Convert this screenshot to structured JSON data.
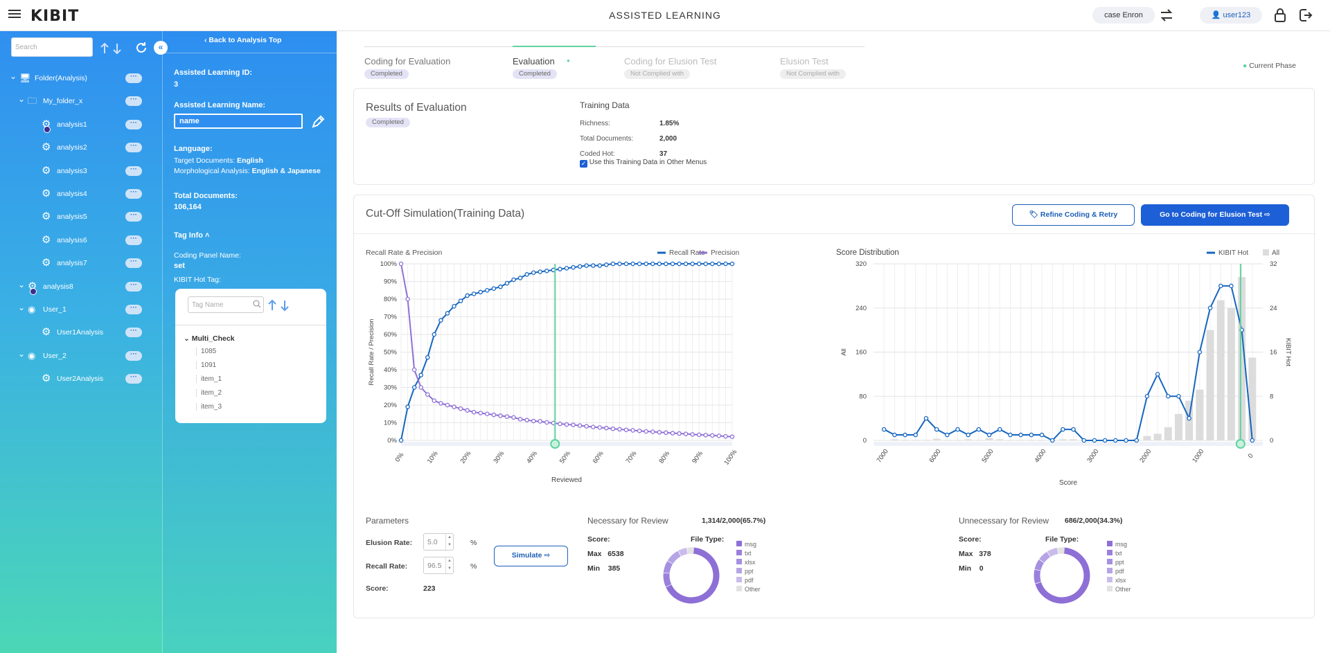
{
  "app": {
    "title": "ASSISTED LEARNING",
    "logo": "KIBIT",
    "case": "case Enron",
    "user": "user123"
  },
  "sidebar": {
    "search_placeholder": "Search",
    "tree": [
      {
        "label": "Folder(Analysis)",
        "icon": "monitor-icon",
        "level": 0
      },
      {
        "label": "My_folder_x",
        "icon": "folder-icon",
        "level": 1
      },
      {
        "label": "analysis1",
        "icon": "gear-icon",
        "level": 2,
        "flag": true
      },
      {
        "label": "analysis2",
        "icon": "gear-icon",
        "level": 2
      },
      {
        "label": "analysis3",
        "icon": "gear-icon",
        "level": 2
      },
      {
        "label": "analysis4",
        "icon": "gear-icon",
        "level": 2
      },
      {
        "label": "analysis5",
        "icon": "gear-icon",
        "level": 2
      },
      {
        "label": "analysis6",
        "icon": "gear-icon",
        "level": 2
      },
      {
        "label": "analysis7",
        "icon": "gear-icon",
        "level": 2
      },
      {
        "label": "analysis8",
        "icon": "gear-icon",
        "level": 1,
        "flag": true
      },
      {
        "label": "User_1",
        "icon": "user-icon",
        "level": 1
      },
      {
        "label": "User1Analysis",
        "icon": "gear-icon",
        "level": 2
      },
      {
        "label": "User_2",
        "icon": "user-icon",
        "level": 1
      },
      {
        "label": "User2Analysis",
        "icon": "gear-icon",
        "level": 2
      }
    ],
    "more": "···"
  },
  "panel": {
    "back": "Back to Analysis Top",
    "id_label": "Assisted Learning ID:",
    "id_value": "3",
    "name_label": "Assisted Learning Name:",
    "name_value": "name",
    "lang_label": "Language:",
    "target_label": "Target Documents:",
    "target_value": "English",
    "morph_label": "Morphological Analysis:",
    "morph_value": "English & Japanese",
    "total_label": "Total Documents:",
    "total_value": "106,164",
    "taginfo": "Tag Info",
    "coding_label": "Coding Panel Name:",
    "coding_value": "set",
    "hot_label": "KIBIT Hot Tag:",
    "tag_placeholder": "Tag Name",
    "tag_group": "Multi_Check",
    "tags": [
      "1085",
      "1091",
      "item_1",
      "item_2",
      "item_3"
    ]
  },
  "phases": [
    {
      "label": "Coding for Evaluation",
      "status": "Completed"
    },
    {
      "label": "Evaluation",
      "status": "Completed"
    },
    {
      "label": "Coding for Elusion Test",
      "status": "Not Complied with"
    },
    {
      "label": "Elusion Test",
      "status": "Not Complied with"
    }
  ],
  "current_phase": "Current Phase",
  "results": {
    "title": "Results of Evaluation",
    "status": "Completed",
    "training_title": "Training Data",
    "rows": [
      {
        "k": "Richness:",
        "v": "1.85%"
      },
      {
        "k": "Total Documents:",
        "v": "2,000"
      },
      {
        "k": "Coded Hot:",
        "v": "37"
      }
    ],
    "checkbox": "Use this Training Data in Other Menus"
  },
  "cutoff": {
    "title": "Cut-Off Simulation(Training Data)",
    "refine": "Refine Coding & Retry",
    "goto": "Go to Coding for Elusion Test",
    "simulate": "Simulate"
  },
  "params": {
    "title": "Parameters",
    "elusion_label": "Elusion Rate:",
    "elusion_value": "5.0",
    "recall_label": "Recall Rate:",
    "recall_value": "96.5",
    "score_label": "Score:",
    "score_value": "223",
    "unit": "%"
  },
  "necessary": {
    "title": "Necessary for Review",
    "count": "1,314/2,000(65.7%)",
    "score": "Score:",
    "filetype": "File Type:",
    "max_label": "Max",
    "max": "6538",
    "min_label": "Min",
    "min": "385",
    "legend": [
      "msg",
      "txt",
      "xlsx",
      "ppt",
      "pdf",
      "Other"
    ]
  },
  "unnecessary": {
    "title": "Unnecessary for Review",
    "count": "686/2,000(34.3%)",
    "score": "Score:",
    "filetype": "File Type:",
    "max_label": "Max",
    "max": "378",
    "min_label": "Min",
    "min": "0",
    "legend": [
      "msg",
      "txt",
      "ppt",
      "pdf",
      "xlsx",
      "Other"
    ]
  },
  "colors": {
    "blue": "#1565c0",
    "purple": "#8e6fd6",
    "green": "#5fd3a0",
    "gray": "#dcdcdc"
  },
  "chart_data": [
    {
      "type": "line",
      "title": "Recall Rate & Precision",
      "xlabel": "Reviewed",
      "ylabel": "Recall Rate / Precision",
      "legend_position": "top-right",
      "grid": true,
      "xlim": [
        0,
        100
      ],
      "ylim": [
        0,
        100
      ],
      "xticks": [
        "0%",
        "10%",
        "20%",
        "30%",
        "40%",
        "50%",
        "60%",
        "70%",
        "80%",
        "90%",
        "100%"
      ],
      "yticks": [
        "0%",
        "10%",
        "20%",
        "30%",
        "40%",
        "50%",
        "60%",
        "70%",
        "80%",
        "90%",
        "100%"
      ],
      "cutoff_x": 46.5,
      "x": [
        0,
        2,
        4,
        6,
        8,
        10,
        12,
        14,
        16,
        18,
        20,
        22,
        24,
        26,
        28,
        30,
        32,
        34,
        36,
        38,
        40,
        42,
        44,
        46,
        48,
        50,
        52,
        54,
        56,
        58,
        60,
        62,
        64,
        66,
        68,
        70,
        72,
        74,
        76,
        78,
        80,
        82,
        84,
        86,
        88,
        90,
        92,
        94,
        96,
        98,
        100
      ],
      "series": [
        {
          "name": "Recall Rate",
          "color": "#1565c0",
          "values": [
            0,
            19,
            30,
            37,
            47,
            60,
            68,
            72,
            76,
            79,
            82,
            83,
            84,
            85,
            86,
            87,
            89,
            91,
            92,
            94,
            95,
            95.5,
            96,
            96.5,
            97,
            97.5,
            98,
            98.5,
            99,
            99,
            99,
            99.5,
            100,
            100,
            100,
            100,
            100,
            100,
            100,
            100,
            100,
            100,
            100,
            100,
            100,
            100,
            100,
            100,
            100,
            100,
            100
          ]
        },
        {
          "name": "Precision",
          "color": "#8e6fd6",
          "values": [
            100,
            80,
            40,
            30,
            26,
            22.5,
            21,
            20,
            19,
            18,
            17,
            16,
            15.5,
            15,
            14.5,
            14,
            13.5,
            13,
            12,
            11.5,
            11,
            10.8,
            10.2,
            9.8,
            9.4,
            9,
            8.8,
            8.4,
            8.0,
            7.6,
            7.3,
            7.0,
            6.6,
            6.3,
            6.0,
            5.7,
            5.4,
            5.1,
            4.9,
            4.6,
            4.4,
            4.1,
            3.9,
            3.7,
            3.4,
            3.2,
            3.0,
            2.8,
            2.6,
            2.3,
            2.1
          ]
        }
      ]
    },
    {
      "type": "bar+line",
      "title": "Score Distribution",
      "xlabel": "Score",
      "ylabel": "All",
      "y2label": "KIBIT Hot",
      "legend_position": "top-right",
      "grid": true,
      "xlim": [
        7200,
        -200
      ],
      "xticks": [
        "7000",
        "6000",
        "5000",
        "4000",
        "3000",
        "2000",
        "1000",
        "0"
      ],
      "xtick_values": [
        7000,
        6000,
        5000,
        4000,
        3000,
        2000,
        1000,
        0
      ],
      "ylim": [
        0,
        320
      ],
      "yticks": [
        "0",
        "80",
        "160",
        "240",
        "320"
      ],
      "y2lim": [
        0,
        32
      ],
      "y2ticks": [
        "0",
        "8",
        "16",
        "24",
        "32"
      ],
      "cutoff_x": 223,
      "series": [
        {
          "name": "KIBIT Hot",
          "axis": "y2",
          "color": "#1565c0",
          "x": [
            7000,
            6800,
            6600,
            6400,
            6200,
            6000,
            5800,
            5600,
            5400,
            5200,
            5000,
            4800,
            4600,
            4400,
            4200,
            4000,
            3800,
            3600,
            3400,
            3200,
            3000,
            2800,
            2600,
            2400,
            2200,
            2000,
            1800,
            1600,
            1400,
            1200,
            1000,
            800,
            600,
            400,
            200,
            0
          ],
          "values": [
            2,
            1,
            1,
            1,
            4,
            2,
            1,
            2,
            1,
            2,
            1,
            2,
            1,
            1,
            1,
            1,
            0,
            2,
            2,
            0,
            0,
            0,
            0,
            0,
            0,
            8,
            12,
            8,
            8,
            4,
            16,
            24,
            28,
            28,
            20,
            0
          ]
        },
        {
          "name": "All",
          "axis": "y1",
          "color": "#dcdcdc",
          "x": [
            6800,
            6600,
            6400,
            6200,
            6000,
            5800,
            5600,
            5400,
            5200,
            5000,
            4800,
            4600,
            4400,
            4200,
            4000,
            3800,
            3600,
            3400,
            3200,
            3000,
            2800,
            2600,
            2400,
            2200,
            2000,
            1800,
            1600,
            1400,
            1200,
            1000,
            800,
            600,
            400,
            200,
            0
          ],
          "values": [
            2,
            1,
            1,
            1,
            3,
            1,
            1,
            2,
            1,
            4,
            2,
            1,
            1,
            1,
            1,
            1,
            2,
            2,
            1,
            1,
            1,
            1,
            1,
            2,
            8,
            12,
            24,
            48,
            72,
            92,
            200,
            254,
            240,
            296,
            150
          ]
        }
      ]
    },
    {
      "type": "pie",
      "title": "Necessary for Review",
      "categories": [
        "msg",
        "txt",
        "xlsx",
        "ppt",
        "pdf",
        "Other"
      ],
      "values": [
        68,
        8,
        7,
        8,
        5,
        4
      ],
      "colors": [
        "#8e6fd6",
        "#9a80dc",
        "#a690e0",
        "#b6a4e6",
        "#c9bceb",
        "#e2e2e2"
      ]
    },
    {
      "type": "pie",
      "title": "Unnecessary for Review",
      "categories": [
        "msg",
        "txt",
        "ppt",
        "pdf",
        "xlsx",
        "Other"
      ],
      "values": [
        70,
        8,
        6,
        6,
        6,
        4
      ],
      "colors": [
        "#8e6fd6",
        "#9a80dc",
        "#a690e0",
        "#b6a4e6",
        "#c9bceb",
        "#e2e2e2"
      ]
    }
  ]
}
